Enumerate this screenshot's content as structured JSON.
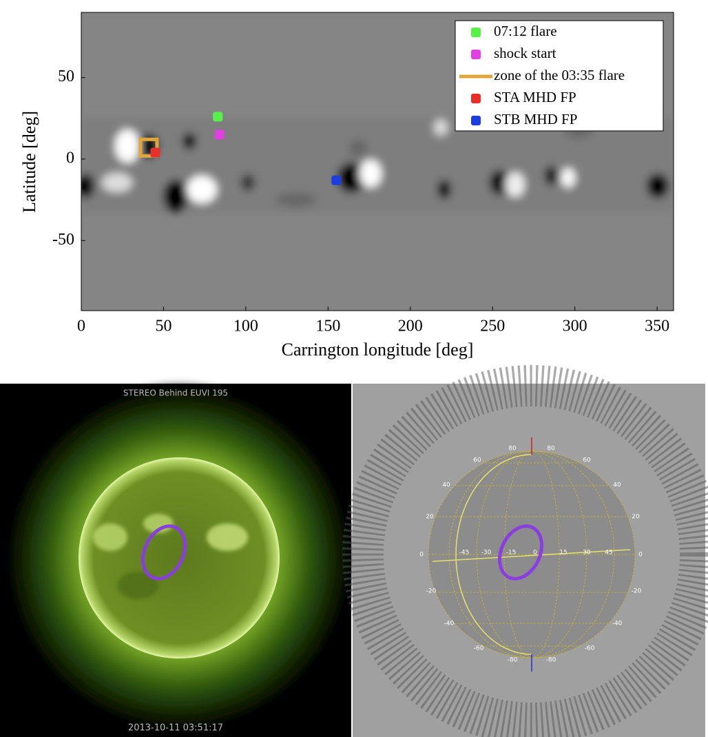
{
  "chart_data": {
    "type": "scatter",
    "xlabel": "Carrington longitude [deg]",
    "ylabel": "Latitude [deg]",
    "xlim": [
      0,
      360
    ],
    "ylim": [
      -93,
      90
    ],
    "xticks": [
      0,
      50,
      100,
      150,
      200,
      250,
      300,
      350
    ],
    "yticks": [
      -50,
      0,
      50
    ],
    "legend": "upper right",
    "series": [
      {
        "name": "07:12 flare",
        "color": "#5af04a",
        "marker": "square",
        "x": [
          83
        ],
        "y": [
          26
        ]
      },
      {
        "name": "shock start",
        "color": "#e040e0",
        "marker": "square",
        "x": [
          84
        ],
        "y": [
          15
        ]
      },
      {
        "name": "zone of the 03:35 flare",
        "color": "#e0a63c",
        "marker": "hollow-square",
        "x": [
          41
        ],
        "y": [
          7
        ]
      },
      {
        "name": "STA MHD FP",
        "color": "#e8302a",
        "marker": "square",
        "x": [
          45
        ],
        "y": [
          4
        ]
      },
      {
        "name": "STB MHD FP",
        "color": "#1a3ee0",
        "marker": "square",
        "x": [
          155
        ],
        "y": [
          -13
        ]
      }
    ]
  },
  "panels": [
    {
      "title": "STEREO Behind EUVI 195",
      "timestamp": "2013-10-11 03:51:17"
    },
    {
      "grid_labels": [
        "80",
        "80",
        "60",
        "60",
        "40",
        "40",
        "20",
        "20",
        "0",
        "0",
        "-20",
        "-20",
        "-40",
        "-40",
        "-60",
        "-60",
        "-80",
        "-80",
        "-45",
        "-30",
        "-15",
        "0",
        "15",
        "30",
        "45"
      ]
    }
  ]
}
